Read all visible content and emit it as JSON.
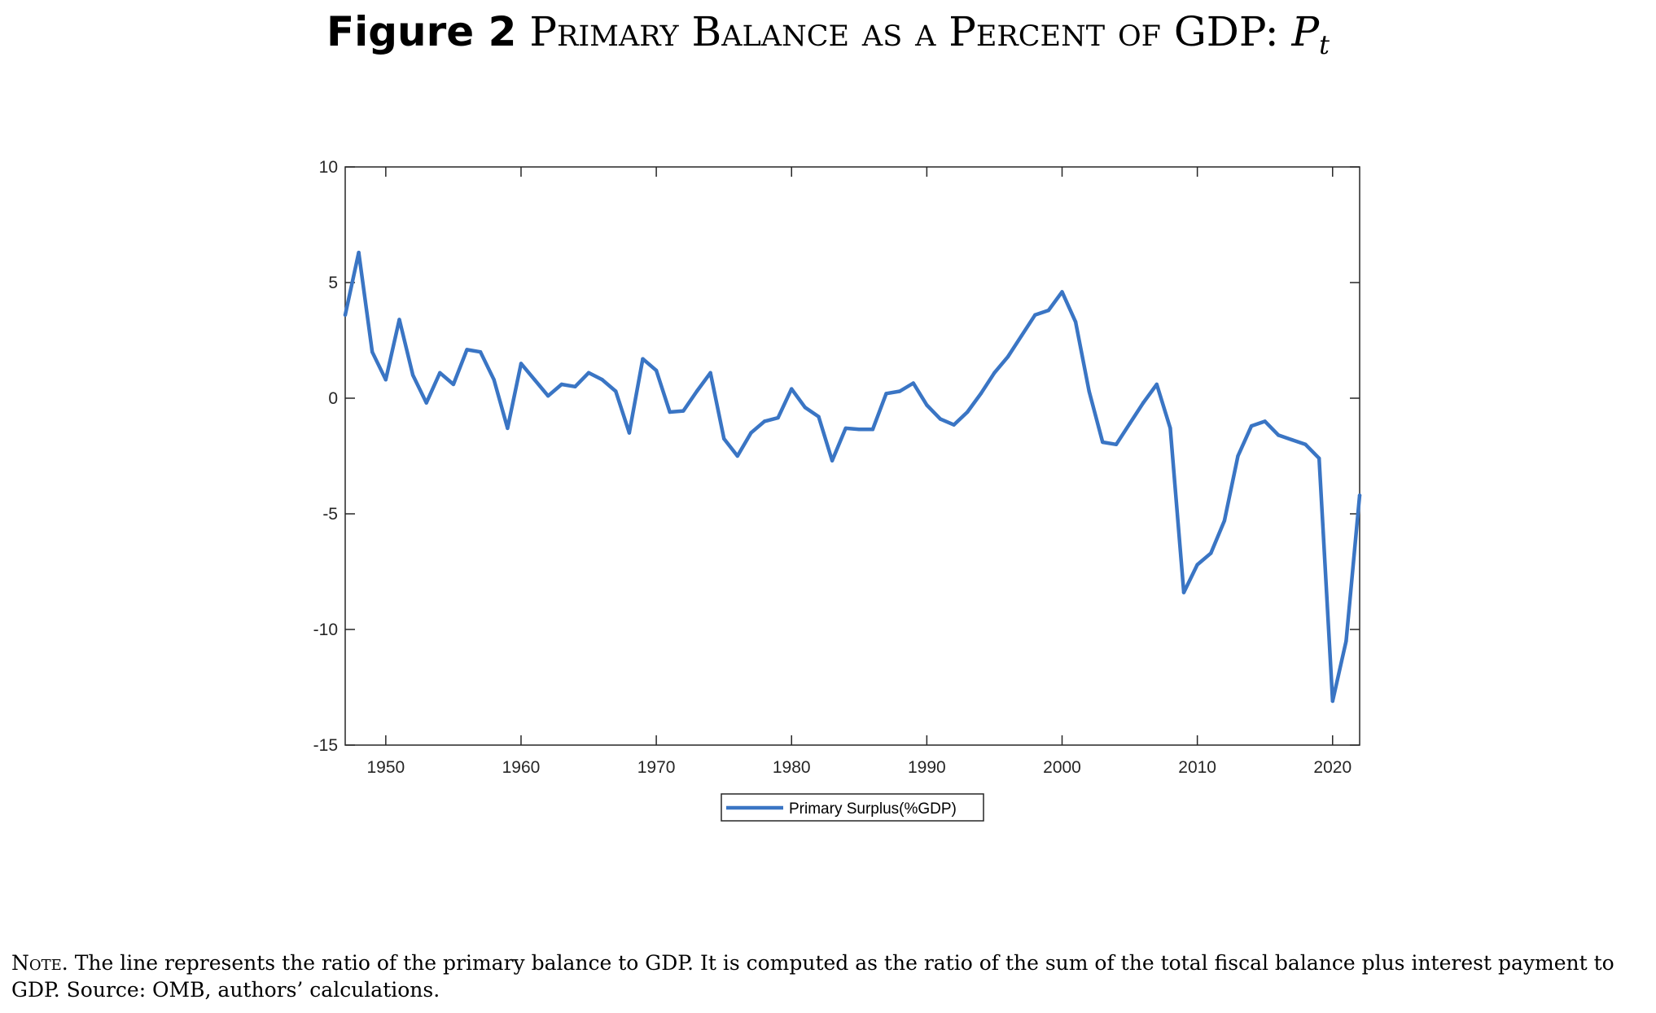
{
  "title": {
    "figure_label": "Figure 2",
    "text": "Primary Balance as a Percent of GDP:",
    "symbol": "P",
    "subscript": "t"
  },
  "note": {
    "lead": "Note.",
    "text": "The line represents the ratio of the primary balance to GDP. It is computed as the ratio of the sum of the total fiscal balance plus interest payment to GDP. Source: OMB, authors’ calculations."
  },
  "chart_data": {
    "type": "line",
    "title": "",
    "xlabel": "",
    "ylabel": "",
    "xlim": [
      1947,
      2022
    ],
    "ylim": [
      -15,
      10
    ],
    "xticks": [
      1950,
      1960,
      1970,
      1980,
      1990,
      2000,
      2010,
      2020
    ],
    "yticks": [
      10,
      5,
      0,
      -5,
      -10,
      -15
    ],
    "grid": false,
    "legend_position": "bottom-outside",
    "series": [
      {
        "name": "Primary Surplus(%GDP)",
        "color": "#3a75c4",
        "x": [
          1947,
          1948,
          1949,
          1950,
          1951,
          1952,
          1953,
          1954,
          1955,
          1956,
          1957,
          1958,
          1959,
          1960,
          1961,
          1962,
          1963,
          1964,
          1965,
          1966,
          1967,
          1968,
          1969,
          1970,
          1971,
          1972,
          1973,
          1974,
          1975,
          1976,
          1977,
          1978,
          1979,
          1980,
          1981,
          1982,
          1983,
          1984,
          1985,
          1986,
          1987,
          1988,
          1989,
          1990,
          1991,
          1992,
          1993,
          1994,
          1995,
          1996,
          1997,
          1998,
          1999,
          2000,
          2001,
          2002,
          2003,
          2004,
          2005,
          2006,
          2007,
          2008,
          2009,
          2010,
          2011,
          2012,
          2013,
          2014,
          2015,
          2016,
          2017,
          2018,
          2019,
          2020,
          2021,
          2022
        ],
        "values": [
          3.6,
          6.3,
          2.0,
          0.8,
          3.4,
          1.0,
          -0.2,
          1.1,
          0.6,
          2.1,
          2.0,
          0.8,
          -1.3,
          1.5,
          0.8,
          0.1,
          0.6,
          0.5,
          1.1,
          0.8,
          0.3,
          -1.5,
          1.7,
          1.2,
          -0.6,
          -0.55,
          0.3,
          1.1,
          -1.75,
          -2.5,
          -1.5,
          -1.0,
          -0.85,
          0.4,
          -0.4,
          -0.8,
          -2.7,
          -1.3,
          -1.35,
          -1.35,
          0.2,
          0.3,
          0.65,
          -0.3,
          -0.9,
          -1.15,
          -0.6,
          0.2,
          1.1,
          1.8,
          2.7,
          3.6,
          3.8,
          4.6,
          3.3,
          0.3,
          -1.9,
          -2.0,
          -1.1,
          -0.2,
          0.6,
          -1.3,
          -8.4,
          -7.2,
          -6.7,
          -5.3,
          -2.5,
          -1.2,
          -1.0,
          -1.6,
          -1.8,
          -2.0,
          -2.6,
          -13.1,
          -10.5,
          -4.2
        ]
      }
    ]
  }
}
